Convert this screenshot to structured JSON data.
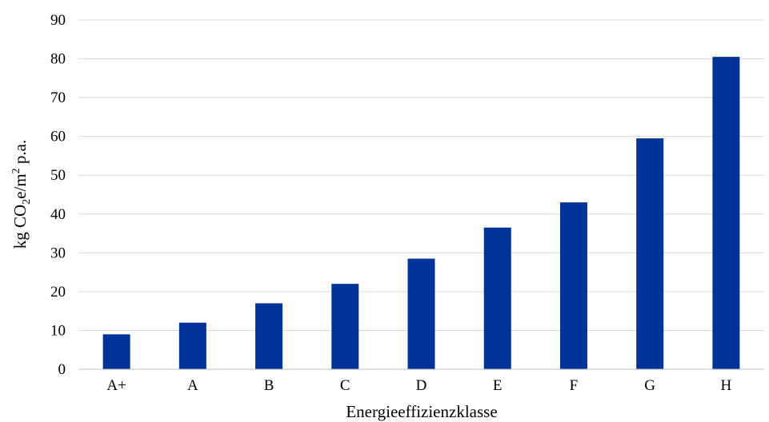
{
  "chart_data": {
    "type": "bar",
    "categories": [
      "A+",
      "A",
      "B",
      "C",
      "D",
      "E",
      "F",
      "G",
      "H"
    ],
    "values": [
      9,
      12,
      17,
      22,
      28.5,
      36.5,
      43,
      59.5,
      80.5
    ],
    "xlabel": "Energieeffizienzklasse",
    "ylabel": {
      "prefix": "kg CO",
      "sub": "2",
      "middle": "e/m",
      "sup": "2",
      "suffix": " p.a."
    },
    "ylim": [
      0,
      90
    ],
    "yticks": [
      0,
      10,
      20,
      30,
      40,
      50,
      60,
      70,
      80,
      90
    ],
    "grid": true,
    "legend": "none",
    "bar_color": "#003399"
  }
}
